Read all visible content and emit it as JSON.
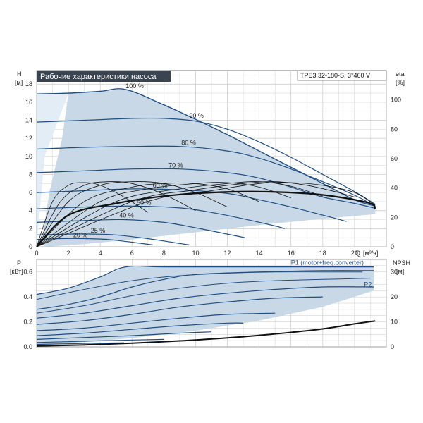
{
  "title": "Рабочие характеристики насоса",
  "model": "TPE3 32-180-S, 3*460 V",
  "colors": {
    "curve": "#1f4f82",
    "region": "#c9d8e6",
    "region_light": "#e2edf6",
    "efficiency": "#111111",
    "grid": "#c8c8c8",
    "title_bg": "#3a4450"
  },
  "chart_data": [
    {
      "type": "line",
      "name": "head",
      "ylabel_name": "H",
      "ylabel_unit": "[м]",
      "y2label_name": "eta",
      "y2label_unit": "[%]",
      "xlabel_name": "Q",
      "xlabel_unit": "[м³/ч]",
      "xlim": [
        0,
        22
      ],
      "ylim": [
        0,
        19.5
      ],
      "y2lim": [
        0,
        120
      ],
      "xticks": [
        0,
        2,
        4,
        6,
        8,
        10,
        12,
        14,
        16,
        18,
        20
      ],
      "yticks": [
        0,
        2,
        4,
        6,
        8,
        10,
        12,
        14,
        16,
        18
      ],
      "y2ticks": [
        0,
        20,
        40,
        60,
        80,
        100
      ],
      "speed_labels": [
        {
          "text": "100 %",
          "q": 5.6,
          "h": 17.4
        },
        {
          "text": "90 %",
          "q": 9.6,
          "h": 14.1
        },
        {
          "text": "80 %",
          "q": 9.1,
          "h": 11.1
        },
        {
          "text": "70 %",
          "q": 8.3,
          "h": 8.6
        },
        {
          "text": "60 %",
          "q": 7.3,
          "h": 6.4
        },
        {
          "text": "50 %",
          "q": 6.3,
          "h": 4.5
        },
        {
          "text": "40 %",
          "q": 5.2,
          "h": 3.1
        },
        {
          "text": "25 %",
          "q": 3.4,
          "h": 1.4
        },
        {
          "text": "20 %",
          "q": 2.3,
          "h": 0.9
        }
      ],
      "series": [
        {
          "values": [
            [
              0,
              16.9
            ],
            [
              2,
              17.0
            ],
            [
              4,
              17.2
            ],
            [
              5.6,
              17.4
            ],
            [
              8,
              15.7
            ],
            [
              10,
              14.1
            ],
            [
              12,
              12.4
            ],
            [
              14,
              10.6
            ],
            [
              16,
              8.8
            ],
            [
              18,
              7.0
            ],
            [
              20,
              5.2
            ],
            [
              21.3,
              4.5
            ]
          ]
        },
        {
          "values": [
            [
              0,
              13.8
            ],
            [
              3,
              14.0
            ],
            [
              6,
              14.2
            ],
            [
              8,
              14.2
            ],
            [
              10,
              13.9
            ],
            [
              12,
              13.0
            ],
            [
              14,
              11.6
            ],
            [
              16,
              9.9
            ],
            [
              18,
              8.0
            ],
            [
              20,
              6.1
            ],
            [
              21.3,
              4.7
            ]
          ]
        },
        {
          "values": [
            [
              0,
              10.8
            ],
            [
              3,
              11.0
            ],
            [
              6,
              11.1
            ],
            [
              9,
              11.1
            ],
            [
              12,
              10.6
            ],
            [
              14,
              9.8
            ],
            [
              16,
              8.6
            ],
            [
              18,
              7.2
            ],
            [
              20,
              5.7
            ],
            [
              21.2,
              4.6
            ]
          ]
        },
        {
          "values": [
            [
              0,
              8.2
            ],
            [
              3,
              8.4
            ],
            [
              6,
              8.6
            ],
            [
              9,
              8.6
            ],
            [
              12,
              8.2
            ],
            [
              14,
              7.6
            ],
            [
              16,
              6.6
            ],
            [
              18,
              5.5
            ],
            [
              20,
              4.8
            ],
            [
              21.2,
              4.3
            ]
          ]
        },
        {
          "values": [
            [
              0,
              6.0
            ],
            [
              3,
              6.2
            ],
            [
              6,
              6.4
            ],
            [
              9,
              6.3
            ],
            [
              12,
              5.9
            ],
            [
              14,
              5.2
            ],
            [
              16,
              4.4
            ],
            [
              18,
              3.5
            ],
            [
              19.5,
              2.8
            ]
          ]
        },
        {
          "values": [
            [
              0,
              4.2
            ],
            [
              3,
              4.4
            ],
            [
              6,
              4.5
            ],
            [
              9,
              4.3
            ],
            [
              11,
              3.8
            ],
            [
              13,
              3.1
            ],
            [
              15,
              2.3
            ],
            [
              15.6,
              2.0
            ]
          ]
        },
        {
          "values": [
            [
              0,
              2.7
            ],
            [
              3,
              2.9
            ],
            [
              5.5,
              3.0
            ],
            [
              8,
              2.7
            ],
            [
              10,
              2.1
            ],
            [
              12,
              1.4
            ],
            [
              13.1,
              1.0
            ]
          ]
        },
        {
          "values": [
            [
              0,
              1.3
            ],
            [
              2,
              1.4
            ],
            [
              3.5,
              1.4
            ],
            [
              5,
              1.3
            ],
            [
              7,
              0.9
            ],
            [
              8.5,
              0.5
            ],
            [
              9.6,
              0.2
            ]
          ]
        },
        {
          "values": [
            [
              0,
              0.8
            ],
            [
              1.5,
              0.9
            ],
            [
              3,
              0.9
            ],
            [
              4.5,
              0.8
            ],
            [
              6,
              0.5
            ],
            [
              7.3,
              0.2
            ]
          ]
        }
      ],
      "efficiency_series": [
        {
          "values": [
            [
              0,
              0
            ],
            [
              1,
              5.0
            ],
            [
              2,
              6.8
            ],
            [
              3,
              7.1
            ],
            [
              4,
              6.8
            ],
            [
              5.5,
              5.5
            ],
            [
              7,
              3.8
            ]
          ]
        },
        {
          "values": [
            [
              0,
              0
            ],
            [
              1.5,
              5.0
            ],
            [
              3,
              6.8
            ],
            [
              4.5,
              7.2
            ],
            [
              6,
              7.0
            ],
            [
              8,
              5.8
            ],
            [
              10,
              4.0
            ]
          ]
        },
        {
          "values": [
            [
              0,
              0
            ],
            [
              2,
              5.0
            ],
            [
              4,
              6.8
            ],
            [
              6,
              7.2
            ],
            [
              8,
              7.0
            ],
            [
              10,
              6.0
            ],
            [
              12,
              4.4
            ]
          ]
        },
        {
          "values": [
            [
              0,
              0
            ],
            [
              3,
              5.0
            ],
            [
              6,
              6.6
            ],
            [
              8,
              7.0
            ],
            [
              10,
              7.0
            ],
            [
              12,
              6.4
            ],
            [
              14,
              5.0
            ]
          ]
        },
        {
          "values": [
            [
              0,
              0
            ],
            [
              4,
              5.0
            ],
            [
              7,
              6.4
            ],
            [
              10,
              7.0
            ],
            [
              12,
              7.1
            ],
            [
              14,
              6.6
            ],
            [
              16,
              5.4
            ]
          ]
        },
        {
          "values": [
            [
              0,
              0
            ],
            [
              5,
              5.0
            ],
            [
              9,
              6.4
            ],
            [
              12,
              7.0
            ],
            [
              14,
              7.2
            ],
            [
              16,
              6.7
            ],
            [
              18,
              5.6
            ]
          ]
        },
        {
          "values": [
            [
              0,
              0
            ],
            [
              6,
              5.0
            ],
            [
              10,
              6.3
            ],
            [
              13,
              7.0
            ],
            [
              15,
              7.2
            ],
            [
              17,
              6.8
            ],
            [
              19,
              6.0
            ],
            [
              20,
              5.5
            ]
          ]
        },
        {
          "values": [
            [
              0,
              0
            ],
            [
              7,
              5.0
            ],
            [
              11,
              6.2
            ],
            [
              14,
              7.0
            ],
            [
              16,
              7.1
            ],
            [
              18,
              6.8
            ],
            [
              20,
              6.0
            ],
            [
              21.3,
              4.6
            ]
          ]
        },
        {
          "values": [
            [
              0,
              0
            ],
            [
              2,
              3.5
            ],
            [
              5,
              4.8
            ],
            [
              8,
              5.6
            ],
            [
              11,
              6.0
            ],
            [
              14,
              6.1
            ],
            [
              17,
              5.9
            ],
            [
              19,
              5.5
            ],
            [
              21,
              4.8
            ],
            [
              21.3,
              4.2
            ]
          ]
        }
      ]
    },
    {
      "type": "line",
      "name": "power",
      "ylabel_name": "P",
      "ylabel_unit": "[кВт]",
      "y2label_name": "NPSH",
      "y2label_unit": "[м]",
      "xlim": [
        0,
        22
      ],
      "ylim": [
        0,
        0.7
      ],
      "y2lim": [
        0,
        35
      ],
      "yticks": [
        0.0,
        0.2,
        0.4,
        0.6
      ],
      "y2ticks": [
        0,
        10,
        20,
        30
      ],
      "annotations": [
        {
          "text": "P1 (motor+freq.converter)",
          "q": 16.0,
          "p": 0.675
        },
        {
          "text": "P2",
          "q": 20.5,
          "p": 0.5
        }
      ],
      "series": [
        {
          "values": [
            [
              0,
              0.42
            ],
            [
              2,
              0.47
            ],
            [
              4,
              0.56
            ],
            [
              5.6,
              0.64
            ],
            [
              8,
              0.64
            ],
            [
              12,
              0.64
            ],
            [
              16,
              0.64
            ],
            [
              20,
              0.64
            ],
            [
              21.2,
              0.64
            ]
          ]
        },
        {
          "values": [
            [
              0,
              0.3
            ],
            [
              2,
              0.34
            ],
            [
              4,
              0.4
            ],
            [
              6,
              0.48
            ],
            [
              8,
              0.54
            ],
            [
              10,
              0.58
            ],
            [
              14,
              0.6
            ],
            [
              18,
              0.61
            ],
            [
              21.2,
              0.61
            ]
          ]
        },
        {
          "values": [
            [
              0,
              0.23
            ],
            [
              3,
              0.27
            ],
            [
              6,
              0.33
            ],
            [
              9,
              0.39
            ],
            [
              12,
              0.43
            ],
            [
              15,
              0.46
            ],
            [
              18,
              0.48
            ],
            [
              21.2,
              0.48
            ]
          ]
        },
        {
          "values": [
            [
              0,
              0.18
            ],
            [
              3,
              0.21
            ],
            [
              6,
              0.26
            ],
            [
              9,
              0.32
            ],
            [
              12,
              0.36
            ],
            [
              15,
              0.39
            ],
            [
              18,
              0.4
            ]
          ]
        },
        {
          "values": [
            [
              0,
              0.13
            ],
            [
              3,
              0.15
            ],
            [
              6,
              0.19
            ],
            [
              9,
              0.23
            ],
            [
              12,
              0.26
            ],
            [
              15,
              0.27
            ]
          ]
        },
        {
          "values": [
            [
              0,
              0.09
            ],
            [
              3,
              0.11
            ],
            [
              6,
              0.14
            ],
            [
              9,
              0.17
            ],
            [
              12,
              0.19
            ],
            [
              13,
              0.19
            ]
          ]
        },
        {
          "values": [
            [
              0,
              0.06
            ],
            [
              3,
              0.075
            ],
            [
              6,
              0.09
            ],
            [
              9,
              0.11
            ],
            [
              11,
              0.12
            ]
          ]
        },
        {
          "values": [
            [
              0,
              0.035
            ],
            [
              3,
              0.045
            ],
            [
              6,
              0.055
            ],
            [
              8,
              0.06
            ]
          ]
        },
        {
          "values": [
            [
              0,
              0.02
            ],
            [
              3,
              0.027
            ],
            [
              5.5,
              0.033
            ]
          ]
        }
      ],
      "p2_series": [
        {
          "values": [
            [
              0,
              0.38
            ],
            [
              3,
              0.46
            ],
            [
              6,
              0.53
            ],
            [
              9,
              0.57
            ],
            [
              12,
              0.59
            ],
            [
              15,
              0.6
            ],
            [
              18,
              0.6
            ],
            [
              20.5,
              0.6
            ]
          ]
        },
        {
          "values": [
            [
              0,
              0.27
            ],
            [
              3,
              0.33
            ],
            [
              6,
              0.41
            ],
            [
              9,
              0.47
            ],
            [
              12,
              0.51
            ],
            [
              15,
              0.53
            ],
            [
              18,
              0.54
            ],
            [
              21,
              0.55
            ]
          ]
        }
      ],
      "npsh": [
        [
          0,
          0.3
        ],
        [
          3,
          0.8
        ],
        [
          6,
          1.5
        ],
        [
          9,
          2.4
        ],
        [
          12,
          3.6
        ],
        [
          14,
          4.6
        ],
        [
          16,
          5.8
        ],
        [
          18,
          7.2
        ],
        [
          20,
          9.2
        ],
        [
          21.3,
          10.4
        ]
      ]
    }
  ]
}
